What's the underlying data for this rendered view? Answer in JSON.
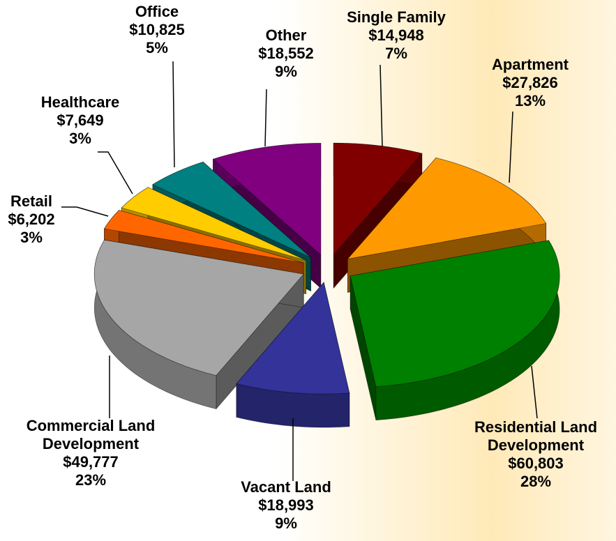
{
  "chart_data": {
    "type": "pie",
    "categories": [
      "Single Family",
      "Apartment",
      "Residential Land Development",
      "Vacant Land",
      "Commercial Land Development",
      "Retail",
      "Healthcare",
      "Office",
      "Other"
    ],
    "values": [
      14948,
      27826,
      60803,
      18993,
      49777,
      6202,
      7649,
      10825,
      18552
    ],
    "value_labels": [
      "$14,948",
      "$27,826",
      "$60,803",
      "$18,993",
      "$49,777",
      "$6,202",
      "$7,649",
      "$10,825",
      "$18,552"
    ],
    "percent_labels": [
      "7%",
      "13%",
      "28%",
      "9%",
      "23%",
      "3%",
      "3%",
      "5%",
      "9%"
    ],
    "colors": [
      "#800000",
      "#ff9900",
      "#008000",
      "#333399",
      "#a6a6a6",
      "#ff6600",
      "#ffcc00",
      "#008080",
      "#800080"
    ]
  }
}
